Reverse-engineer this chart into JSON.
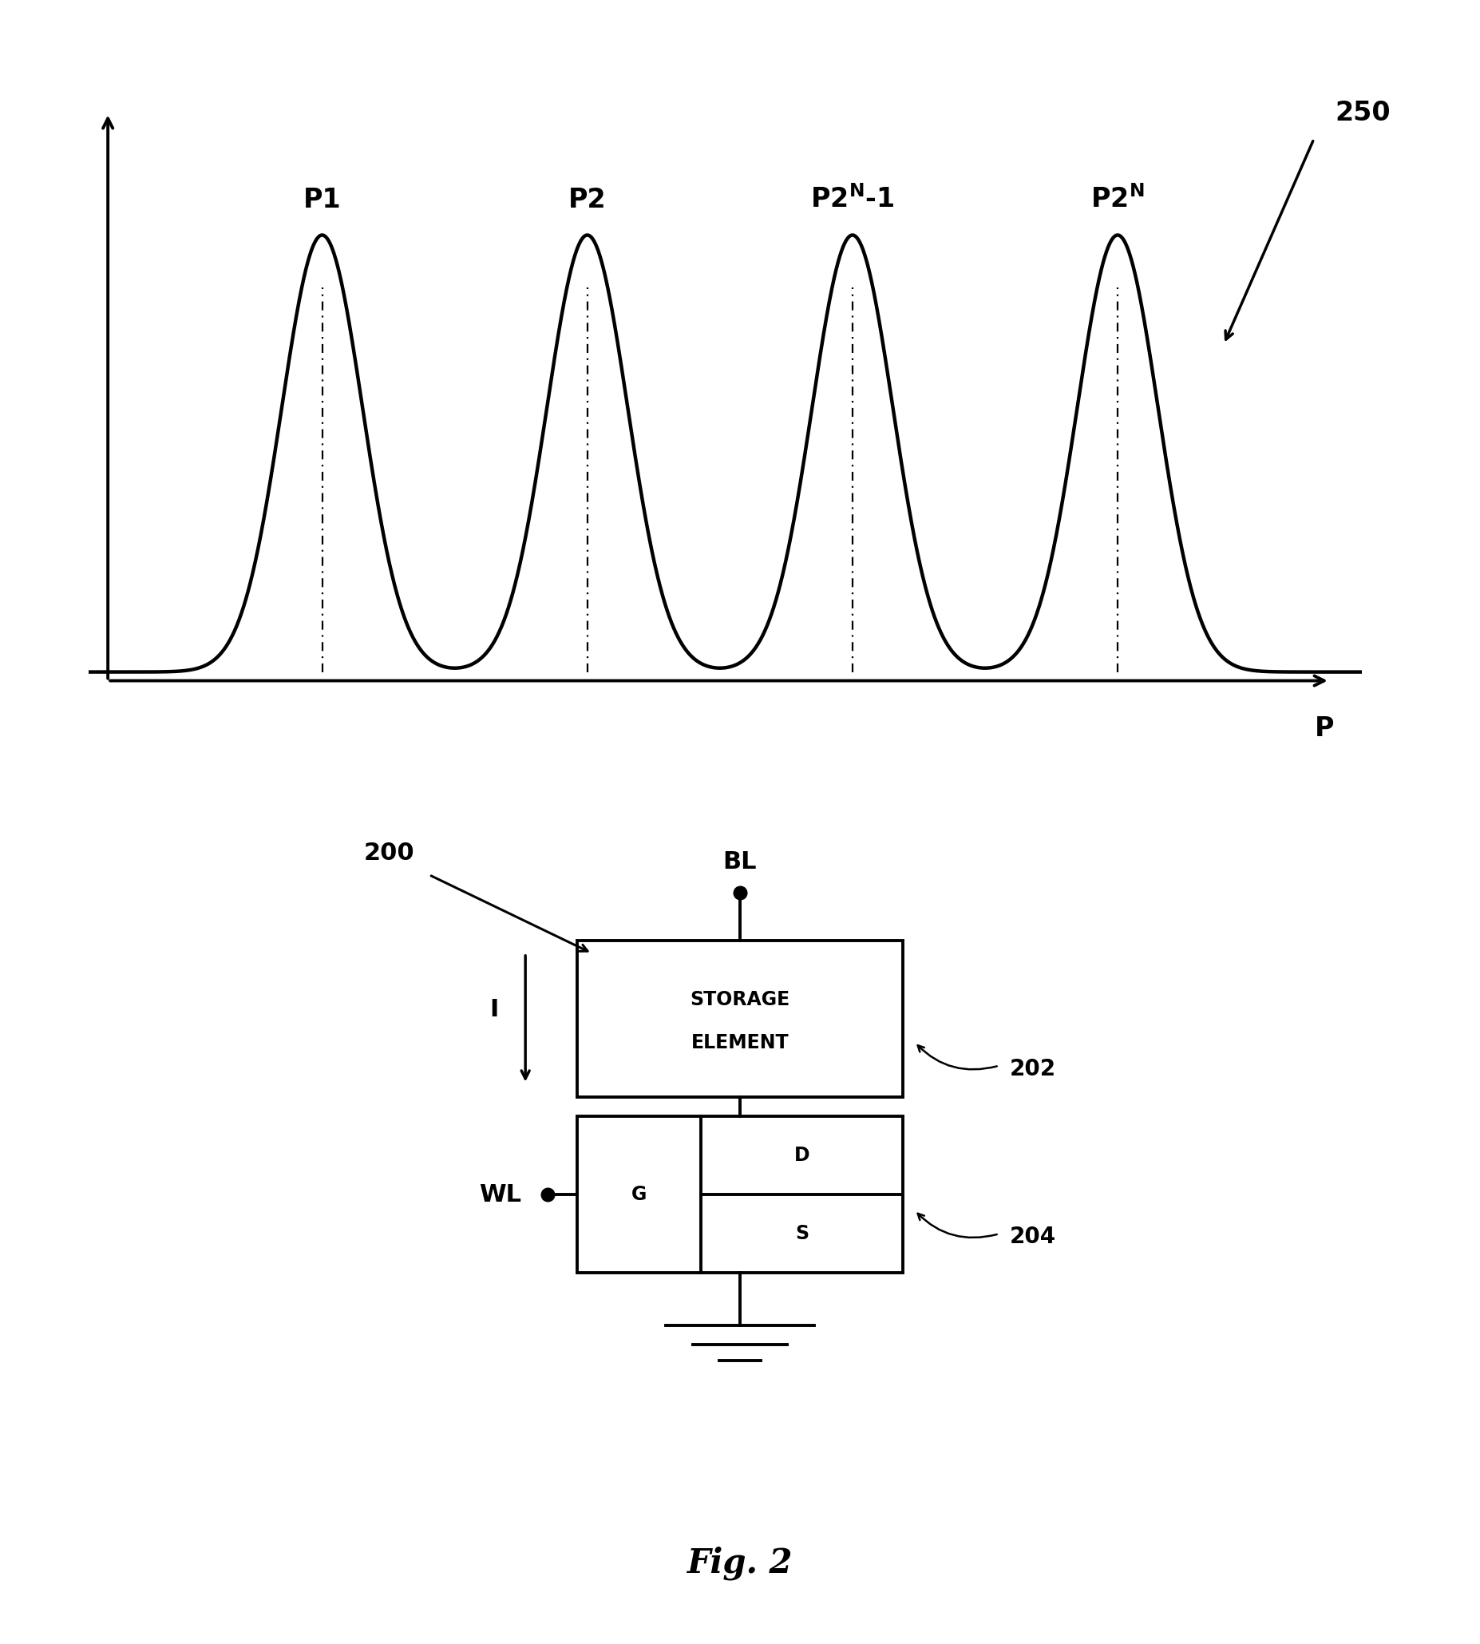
{
  "background_color": "#ffffff",
  "fig_width": 18.54,
  "fig_height": 20.59,
  "gaussian_centers": [
    2.0,
    4.5,
    7.0,
    9.5
  ],
  "gaussian_sigma": 0.38,
  "plot_xlim": [
    -0.2,
    11.8
  ],
  "plot_ylim": [
    -0.08,
    1.35
  ],
  "p_label": "P",
  "label_250": "250",
  "label_200": "200",
  "label_202": "202",
  "label_204": "204",
  "label_BL": "BL",
  "label_WL": "WL",
  "label_I": "I",
  "storage_line1": "STORAGE",
  "storage_line2": "ELEMENT",
  "transistor_G": "G",
  "transistor_D": "D",
  "transistor_S": "S",
  "fig2_label": "Fig. 2"
}
